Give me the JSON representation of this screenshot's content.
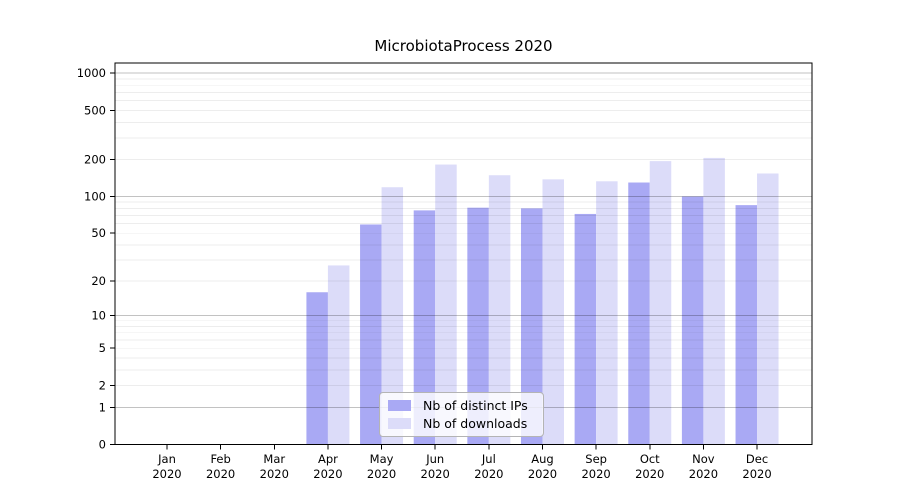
{
  "chart_data": {
    "type": "bar",
    "title": "MicrobiotaProcess 2020",
    "categories": [
      "Jan 2020",
      "Feb 2020",
      "Mar 2020",
      "Apr 2020",
      "May 2020",
      "Jun 2020",
      "Jul 2020",
      "Aug 2020",
      "Sep 2020",
      "Oct 2020",
      "Nov 2020",
      "Dec 2020"
    ],
    "series": [
      {
        "name": "Nb of distinct IPs",
        "color": "#a9a9f4",
        "values": [
          0,
          0,
          0,
          16,
          59,
          77,
          81,
          80,
          72,
          130,
          100,
          85
        ]
      },
      {
        "name": "Nb of downloads",
        "color": "#dcdcf9",
        "values": [
          0,
          0,
          0,
          27,
          119,
          182,
          149,
          138,
          133,
          194,
          206,
          154
        ]
      }
    ],
    "xlabel": "",
    "ylabel": "",
    "yscale": "log1p",
    "yticks": [
      0,
      1,
      2,
      5,
      10,
      20,
      50,
      100,
      200,
      500,
      1000
    ],
    "ylim": [
      0,
      1210
    ],
    "grid": "horizontal, major decades darker + minor lighter",
    "legend_position": "lower center"
  }
}
